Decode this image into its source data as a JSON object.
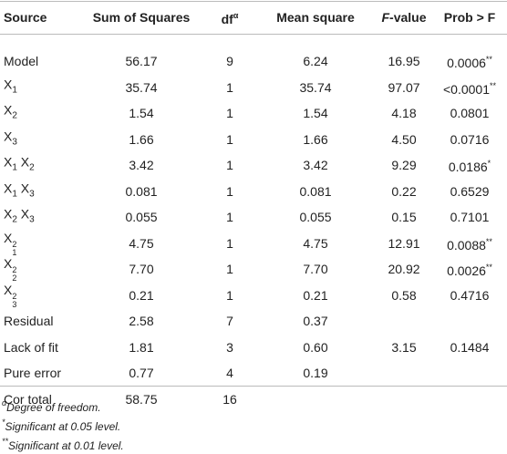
{
  "table": {
    "headers": [
      {
        "text": "Source"
      },
      {
        "text": "Sum of Squares"
      },
      {
        "text": "df",
        "sup": "α"
      },
      {
        "text": "Mean square"
      },
      {
        "italic": "F",
        "text": "-value"
      },
      {
        "text": "Prob > F"
      }
    ],
    "rows": [
      {
        "source": [
          {
            "base": "Model"
          }
        ],
        "ss": "56.17",
        "df": "9",
        "ms": "6.24",
        "f": "16.95",
        "p": {
          "value": "0.0006",
          "mark": "**"
        }
      },
      {
        "source": [
          {
            "base": "X",
            "sub": "1"
          }
        ],
        "ss": "35.74",
        "df": "1",
        "ms": "35.74",
        "f": "97.07",
        "p": {
          "value": "<0.0001",
          "mark": "**"
        }
      },
      {
        "source": [
          {
            "base": "X",
            "sub": "2"
          }
        ],
        "ss": "1.54",
        "df": "1",
        "ms": "1.54",
        "f": "4.18",
        "p": {
          "value": "0.0801"
        }
      },
      {
        "source": [
          {
            "base": "X",
            "sub": "3"
          }
        ],
        "ss": "1.66",
        "df": "1",
        "ms": "1.66",
        "f": "4.50",
        "p": {
          "value": "0.0716"
        }
      },
      {
        "source": [
          {
            "base": "X",
            "sub": "1"
          },
          {
            "base": "X",
            "sub": "2"
          }
        ],
        "ss": "3.42",
        "df": "1",
        "ms": "3.42",
        "f": "9.29",
        "p": {
          "value": "0.0186",
          "mark": "*"
        }
      },
      {
        "source": [
          {
            "base": "X",
            "sub": "1"
          },
          {
            "base": "X",
            "sub": "3"
          }
        ],
        "ss": "0.081",
        "df": "1",
        "ms": "0.081",
        "f": "0.22",
        "p": {
          "value": "0.6529"
        }
      },
      {
        "source": [
          {
            "base": "X",
            "sub": "2"
          },
          {
            "base": "X",
            "sub": "3"
          }
        ],
        "ss": "0.055",
        "df": "1",
        "ms": "0.055",
        "f": "0.15",
        "p": {
          "value": "0.7101"
        }
      },
      {
        "source": [
          {
            "base": "X",
            "sub": "1",
            "sup": "2"
          }
        ],
        "ss": "4.75",
        "df": "1",
        "ms": "4.75",
        "f": "12.91",
        "p": {
          "value": "0.0088",
          "mark": "**"
        }
      },
      {
        "source": [
          {
            "base": "X",
            "sub": "2",
            "sup": "2"
          }
        ],
        "ss": "7.70",
        "df": "1",
        "ms": "7.70",
        "f": "20.92",
        "p": {
          "value": "0.0026",
          "mark": "**"
        }
      },
      {
        "source": [
          {
            "base": "X",
            "sub": "3",
            "sup": "2"
          }
        ],
        "ss": "0.21",
        "df": "1",
        "ms": "0.21",
        "f": "0.58",
        "p": {
          "value": "0.4716"
        }
      },
      {
        "source": [
          {
            "base": "Residual"
          }
        ],
        "ss": "2.58",
        "df": "7",
        "ms": "0.37",
        "f": null,
        "p": null
      },
      {
        "source": [
          {
            "base": "Lack of fit"
          }
        ],
        "ss": "1.81",
        "df": "3",
        "ms": "0.60",
        "f": "3.15",
        "p": {
          "value": "0.1484"
        }
      },
      {
        "source": [
          {
            "base": "Pure error"
          }
        ],
        "ss": "0.77",
        "df": "4",
        "ms": "0.19",
        "f": null,
        "p": null
      },
      {
        "source": [
          {
            "base": "Cor total"
          }
        ],
        "ss": "58.75",
        "df": "16",
        "ms": null,
        "f": null,
        "p": null
      }
    ],
    "footnotes": [
      {
        "mark": "α",
        "text": "Degree of freedom."
      },
      {
        "mark": "*",
        "text": "Significant at 0.05 level."
      },
      {
        "mark": "**",
        "text": "Significant at 0.01 level."
      }
    ]
  }
}
